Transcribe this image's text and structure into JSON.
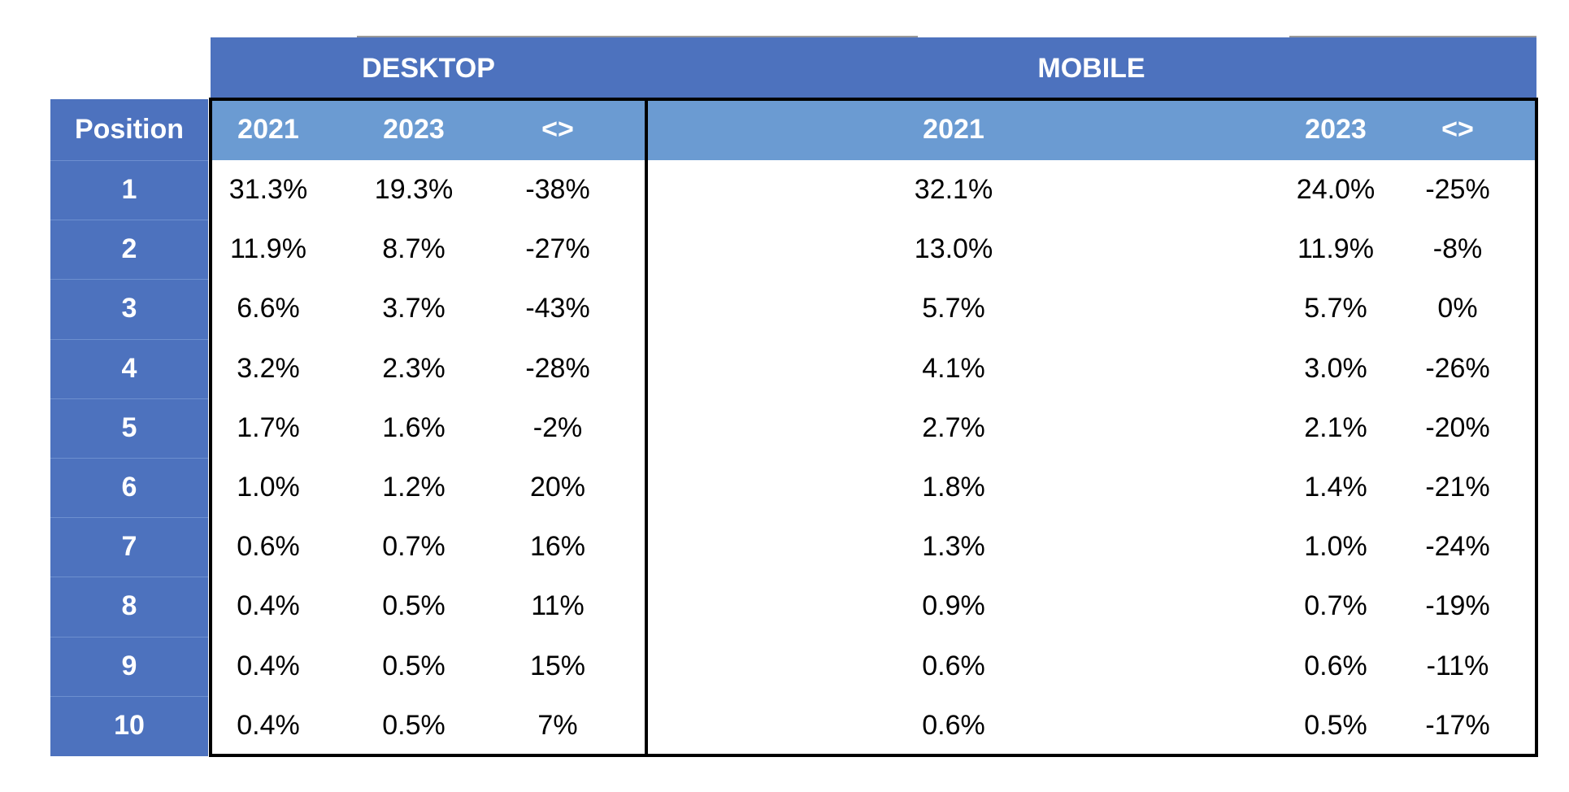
{
  "header": {
    "groups": [
      "DESKTOP",
      "MOBILE"
    ]
  },
  "table": {
    "columns": [
      "Position",
      "2021",
      "2023",
      "<>",
      "2021",
      "2023",
      "<>"
    ],
    "rows": [
      [
        "1",
        "31.3%",
        "19.3%",
        "-38%",
        "32.1%",
        "24.0%",
        "-25%"
      ],
      [
        "2",
        "11.9%",
        "8.7%",
        "-27%",
        "13.0%",
        "11.9%",
        "-8%"
      ],
      [
        "3",
        "6.6%",
        "3.7%",
        "-43%",
        "5.7%",
        "5.7%",
        "0%"
      ],
      [
        "4",
        "3.2%",
        "2.3%",
        "-28%",
        "4.1%",
        "3.0%",
        "-26%"
      ],
      [
        "5",
        "1.7%",
        "1.6%",
        "-2%",
        "2.7%",
        "2.1%",
        "-20%"
      ],
      [
        "6",
        "1.0%",
        "1.2%",
        "20%",
        "1.8%",
        "1.4%",
        "-21%"
      ],
      [
        "7",
        "0.6%",
        "0.7%",
        "16%",
        "1.3%",
        "1.0%",
        "-24%"
      ],
      [
        "8",
        "0.4%",
        "0.5%",
        "11%",
        "0.9%",
        "0.7%",
        "-19%"
      ],
      [
        "9",
        "0.4%",
        "0.5%",
        "15%",
        "0.6%",
        "0.6%",
        "-11%"
      ],
      [
        "10",
        "0.4%",
        "0.5%",
        "7%",
        "0.6%",
        "0.5%",
        "-17%"
      ]
    ]
  }
}
